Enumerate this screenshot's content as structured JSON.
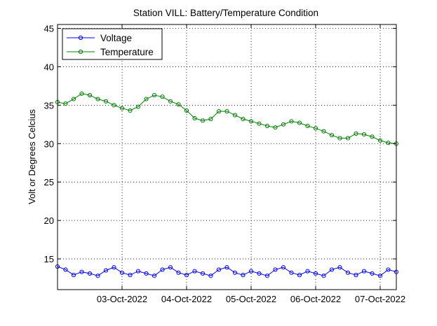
{
  "chart_data": {
    "type": "line",
    "title": "Station VILL: Battery/Temperature Condition",
    "xlabel": "",
    "ylabel": "Volt or Degrees Celcius",
    "xlim": [
      "2022-10-02T00:00",
      "2022-10-07T06:00"
    ],
    "ylim": [
      11,
      45.5
    ],
    "yticks": [
      15,
      20,
      25,
      30,
      35,
      40,
      45
    ],
    "xticks": [
      {
        "x": "2022-10-03T00:00",
        "label": "03-Oct-2022"
      },
      {
        "x": "2022-10-04T00:00",
        "label": "04-Oct-2022"
      },
      {
        "x": "2022-10-05T00:00",
        "label": "05-Oct-2022"
      },
      {
        "x": "2022-10-06T00:00",
        "label": "06-Oct-2022"
      },
      {
        "x": "2022-10-07T00:00",
        "label": "07-Oct-2022"
      }
    ],
    "grid": true,
    "legend_position": "top-left",
    "series": [
      {
        "name": "Voltage",
        "color": "#0000ff",
        "marker": "circle",
        "x": [
          "2022-10-02T00:00",
          "2022-10-02T03:00",
          "2022-10-02T06:00",
          "2022-10-02T09:00",
          "2022-10-02T12:00",
          "2022-10-02T15:00",
          "2022-10-02T18:00",
          "2022-10-02T21:00",
          "2022-10-03T00:00",
          "2022-10-03T03:00",
          "2022-10-03T06:00",
          "2022-10-03T09:00",
          "2022-10-03T12:00",
          "2022-10-03T15:00",
          "2022-10-03T18:00",
          "2022-10-03T21:00",
          "2022-10-04T00:00",
          "2022-10-04T03:00",
          "2022-10-04T06:00",
          "2022-10-04T09:00",
          "2022-10-04T12:00",
          "2022-10-04T15:00",
          "2022-10-04T18:00",
          "2022-10-04T21:00",
          "2022-10-05T00:00",
          "2022-10-05T03:00",
          "2022-10-05T06:00",
          "2022-10-05T09:00",
          "2022-10-05T12:00",
          "2022-10-05T15:00",
          "2022-10-05T18:00",
          "2022-10-05T21:00",
          "2022-10-06T00:00",
          "2022-10-06T03:00",
          "2022-10-06T06:00",
          "2022-10-06T09:00",
          "2022-10-06T12:00",
          "2022-10-06T15:00",
          "2022-10-06T18:00",
          "2022-10-06T21:00",
          "2022-10-07T00:00",
          "2022-10-07T03:00",
          "2022-10-07T06:00"
        ],
        "y": [
          14.0,
          13.6,
          12.9,
          13.3,
          13.1,
          12.8,
          13.5,
          13.9,
          13.2,
          12.9,
          13.4,
          13.1,
          12.8,
          13.6,
          13.9,
          13.2,
          12.9,
          13.4,
          13.1,
          12.8,
          13.6,
          13.9,
          13.2,
          12.9,
          13.4,
          13.1,
          12.8,
          13.6,
          13.9,
          13.2,
          12.9,
          13.4,
          13.1,
          12.8,
          13.6,
          13.9,
          13.2,
          12.9,
          13.4,
          13.1,
          12.8,
          13.6,
          13.3
        ]
      },
      {
        "name": "Temperature",
        "color": "#008000",
        "marker": "circle",
        "x": [
          "2022-10-02T00:00",
          "2022-10-02T03:00",
          "2022-10-02T06:00",
          "2022-10-02T09:00",
          "2022-10-02T12:00",
          "2022-10-02T15:00",
          "2022-10-02T18:00",
          "2022-10-02T21:00",
          "2022-10-03T00:00",
          "2022-10-03T03:00",
          "2022-10-03T06:00",
          "2022-10-03T09:00",
          "2022-10-03T12:00",
          "2022-10-03T15:00",
          "2022-10-03T18:00",
          "2022-10-03T21:00",
          "2022-10-04T00:00",
          "2022-10-04T03:00",
          "2022-10-04T06:00",
          "2022-10-04T09:00",
          "2022-10-04T12:00",
          "2022-10-04T15:00",
          "2022-10-04T18:00",
          "2022-10-04T21:00",
          "2022-10-05T00:00",
          "2022-10-05T03:00",
          "2022-10-05T06:00",
          "2022-10-05T09:00",
          "2022-10-05T12:00",
          "2022-10-05T15:00",
          "2022-10-05T18:00",
          "2022-10-05T21:00",
          "2022-10-06T00:00",
          "2022-10-06T03:00",
          "2022-10-06T06:00",
          "2022-10-06T09:00",
          "2022-10-06T12:00",
          "2022-10-06T15:00",
          "2022-10-06T18:00",
          "2022-10-06T21:00",
          "2022-10-07T00:00",
          "2022-10-07T03:00",
          "2022-10-07T06:00"
        ],
        "y": [
          35.4,
          35.2,
          35.8,
          36.5,
          36.3,
          35.8,
          35.5,
          35.0,
          34.6,
          34.3,
          34.8,
          35.8,
          36.3,
          36.1,
          35.5,
          35.1,
          34.3,
          33.3,
          33.0,
          33.2,
          34.2,
          34.2,
          33.7,
          33.2,
          32.9,
          32.6,
          32.3,
          32.1,
          32.5,
          32.9,
          32.7,
          32.3,
          32.0,
          31.6,
          31.1,
          30.7,
          30.7,
          31.3,
          31.2,
          30.9,
          30.4,
          30.1,
          30.0
        ]
      }
    ]
  }
}
